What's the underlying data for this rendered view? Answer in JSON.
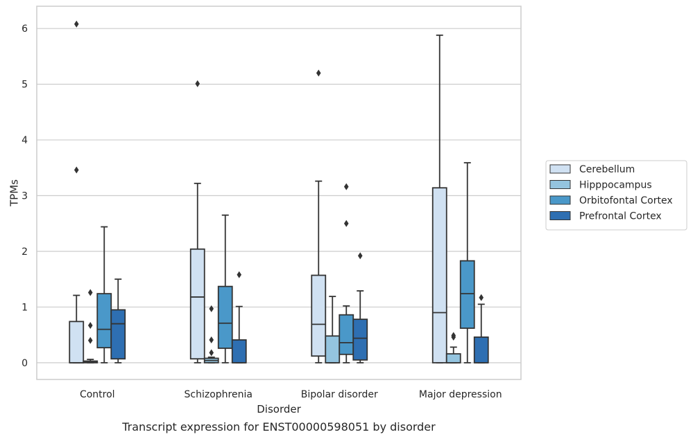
{
  "chart_data": {
    "type": "box",
    "xlabel": "Disorder",
    "ylabel": "TPMs",
    "caption": "Transcript expression for ENST00000598051 by disorder",
    "categories": [
      "Control",
      "Schizophrenia",
      "Bipolar disorder",
      "Major depression"
    ],
    "ylim": [
      -0.3,
      6.4
    ],
    "yticks": [
      "0",
      "1",
      "2",
      "3",
      "4",
      "5",
      "6"
    ],
    "grid": "horizontal",
    "legend_position": "right",
    "series": [
      {
        "name": "Cerebellum",
        "color": "#d0e1f2",
        "boxes": [
          {
            "min": 0,
            "q1": 0,
            "median": 0,
            "q3": 0.74,
            "max": 1.21,
            "outliers": [
              3.46,
              6.08
            ]
          },
          {
            "min": 0,
            "q1": 0.07,
            "median": 1.18,
            "q3": 2.04,
            "max": 3.22,
            "outliers": [
              5.01
            ]
          },
          {
            "min": 0,
            "q1": 0.12,
            "median": 0.69,
            "q3": 1.57,
            "max": 3.26,
            "outliers": [
              5.2
            ]
          },
          {
            "min": 0,
            "q1": 0,
            "median": 0.9,
            "q3": 3.14,
            "max": 5.88,
            "outliers": []
          }
        ]
      },
      {
        "name": "Hipppocampus",
        "color": "#94c4df",
        "boxes": [
          {
            "min": 0,
            "q1": 0,
            "median": 0.01,
            "q3": 0.03,
            "max": 0.06,
            "outliers": [
              0.4,
              0.67,
              1.26
            ]
          },
          {
            "min": 0,
            "q1": 0,
            "median": 0.04,
            "q3": 0.08,
            "max": 0.1,
            "outliers": [
              0.18,
              0.41,
              0.97
            ]
          },
          {
            "min": 0,
            "q1": 0,
            "median": 0,
            "q3": 0.48,
            "max": 1.19,
            "outliers": []
          },
          {
            "min": 0,
            "q1": 0,
            "median": 0,
            "q3": 0.16,
            "max": 0.28,
            "outliers": [
              0.46,
              0.49
            ]
          }
        ]
      },
      {
        "name": "Orbitofontal Cortex",
        "color": "#4a98c9",
        "boxes": [
          {
            "min": 0,
            "q1": 0.27,
            "median": 0.6,
            "q3": 1.24,
            "max": 2.44,
            "outliers": []
          },
          {
            "min": 0,
            "q1": 0.26,
            "median": 0.71,
            "q3": 1.37,
            "max": 2.65,
            "outliers": []
          },
          {
            "min": 0,
            "q1": 0.15,
            "median": 0.36,
            "q3": 0.86,
            "max": 1.02,
            "outliers": [
              2.5,
              3.16
            ]
          },
          {
            "min": 0,
            "q1": 0.62,
            "median": 1.24,
            "q3": 1.83,
            "max": 3.59,
            "outliers": []
          }
        ]
      },
      {
        "name": "Prefrontal Cortex",
        "color": "#2e6fb2",
        "boxes": [
          {
            "min": 0,
            "q1": 0.07,
            "median": 0.7,
            "q3": 0.95,
            "max": 1.5,
            "outliers": []
          },
          {
            "min": 0,
            "q1": 0,
            "median": 0,
            "q3": 0.41,
            "max": 1.01,
            "outliers": [
              1.58
            ]
          },
          {
            "min": 0,
            "q1": 0.05,
            "median": 0.44,
            "q3": 0.78,
            "max": 1.29,
            "outliers": [
              1.92
            ]
          },
          {
            "min": 0,
            "q1": 0,
            "median": 0,
            "q3": 0.46,
            "max": 1.05,
            "outliers": [
              1.17
            ]
          }
        ]
      }
    ]
  }
}
